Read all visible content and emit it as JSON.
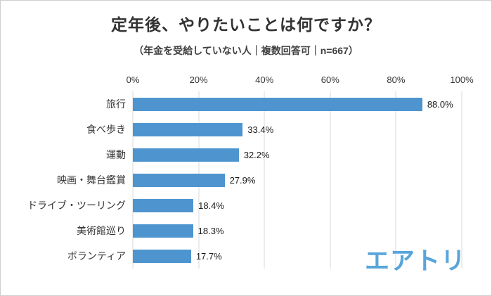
{
  "title": "定年後、やりたいことは何ですか？",
  "subtitle": "（年金を受給していない人｜複数回答可｜n=667）",
  "brand": {
    "logo_text": "エアトリ",
    "logo_color": "#58a5db"
  },
  "chart_data": {
    "type": "bar",
    "orientation": "horizontal",
    "title": "定年後、やりたいことは何ですか？",
    "subtitle": "（年金を受給していない人｜複数回答可｜n=667）",
    "categories": [
      "旅行",
      "食べ歩き",
      "運動",
      "映画・舞台鑑賞",
      "ドライブ・ツーリング",
      "美術館巡り",
      "ボランティア"
    ],
    "values": [
      88.0,
      33.4,
      32.2,
      27.9,
      18.4,
      18.3,
      17.7
    ],
    "value_labels": [
      "88.0%",
      "33.4%",
      "32.2%",
      "27.9%",
      "18.4%",
      "18.3%",
      "17.7%"
    ],
    "x_ticks": [
      "0%",
      "20%",
      "40%",
      "60%",
      "80%",
      "100%"
    ],
    "xlim": [
      0,
      100
    ],
    "xlabel": "",
    "ylabel": "",
    "grid": true,
    "legend": false,
    "bar_color": "#4e95d0",
    "gridline_color": "#d9d9d9"
  }
}
